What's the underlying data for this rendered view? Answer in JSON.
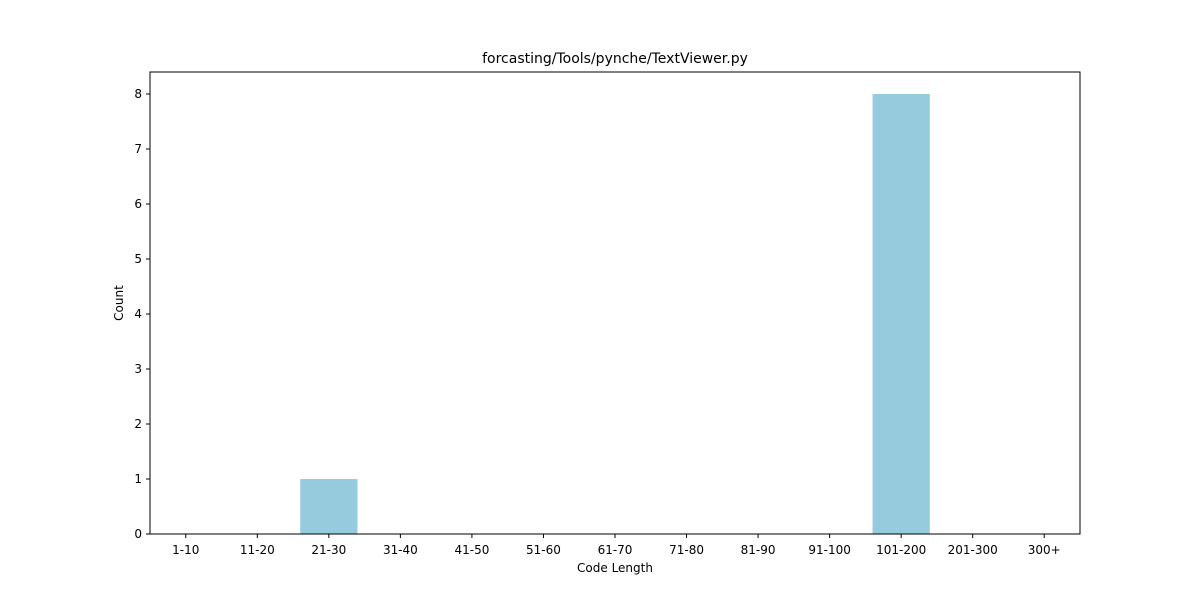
{
  "chart_data": {
    "type": "bar",
    "title": "forcasting/Tools/pynche/TextViewer.py",
    "xlabel": "Code Length",
    "ylabel": "Count",
    "categories": [
      "1-10",
      "11-20",
      "21-30",
      "31-40",
      "41-50",
      "51-60",
      "61-70",
      "71-80",
      "81-90",
      "91-100",
      "101-200",
      "201-300",
      "300+"
    ],
    "values": [
      0,
      0,
      1,
      0,
      0,
      0,
      0,
      0,
      0,
      0,
      8,
      0,
      0
    ],
    "ylim": [
      0,
      8.4
    ],
    "yticks": [
      0,
      1,
      2,
      3,
      4,
      5,
      6,
      7,
      8
    ],
    "bar_color": "#96cadd",
    "grid": false,
    "legend": "none"
  }
}
